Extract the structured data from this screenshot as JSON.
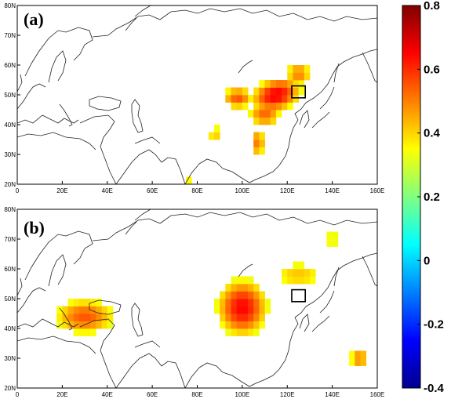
{
  "chart_data": {
    "type": "heatmap",
    "colorbar": {
      "min": -0.4,
      "max": 0.8,
      "ticks": [
        "0.8",
        "0.6",
        "0.4",
        "0.2",
        "0",
        "-0.2",
        "-0.4"
      ],
      "tick_values": [
        0.8,
        0.6,
        0.4,
        0.2,
        0,
        -0.2,
        -0.4
      ],
      "colormap": "jet"
    },
    "panels": [
      {
        "label": "(a)",
        "xlim": [
          0,
          160
        ],
        "ylim": [
          20,
          80
        ],
        "xticks": [
          "0",
          "20E",
          "40E",
          "60E",
          "80E",
          "100E",
          "120E",
          "140E",
          "160E"
        ],
        "yticks": [
          "20N",
          "30N",
          "40N",
          "50N",
          "60N",
          "70N",
          "80N"
        ],
        "region_box": {
          "lon": [
            122,
            128
          ],
          "lat": [
            49,
            53
          ]
        },
        "significant_blobs": [
          {
            "lon": 115,
            "lat": 50,
            "sx": 14,
            "sy": 7,
            "peak": 0.66,
            "rot": 0.2
          },
          {
            "lon": 98,
            "lat": 49,
            "sx": 9,
            "sy": 5,
            "peak": 0.55
          },
          {
            "lon": 125,
            "lat": 57,
            "sx": 8,
            "sy": 6,
            "peak": 0.5
          },
          {
            "lon": 110,
            "lat": 43,
            "sx": 10,
            "sy": 4,
            "peak": 0.55
          },
          {
            "lon": 107,
            "lat": 34,
            "sx": 4,
            "sy": 7,
            "peak": 0.52
          },
          {
            "lon": 88,
            "lat": 37,
            "sx": 6,
            "sy": 4,
            "peak": 0.42
          },
          {
            "lon": 70,
            "lat": 25,
            "sx": 3,
            "sy": 3,
            "peak": 0.36
          },
          {
            "lon": 76,
            "lat": 21,
            "sx": 4,
            "sy": 2,
            "peak": 0.36
          }
        ]
      },
      {
        "label": "(b)",
        "xlim": [
          0,
          160
        ],
        "ylim": [
          20,
          80
        ],
        "xticks": [
          "0",
          "20E",
          "40E",
          "60E",
          "80E",
          "100E",
          "120E",
          "140E",
          "160E"
        ],
        "yticks": [
          "20N",
          "30N",
          "40N",
          "50N",
          "60N",
          "70N",
          "80N"
        ],
        "region_box": {
          "lon": [
            122,
            128
          ],
          "lat": [
            49,
            53
          ]
        },
        "significant_blobs": [
          {
            "lon": 30,
            "lat": 44,
            "sx": 18,
            "sy": 8,
            "peak": 0.55
          },
          {
            "lon": 100,
            "lat": 47,
            "sx": 14,
            "sy": 12,
            "peak": 0.65
          },
          {
            "lon": 125,
            "lat": 58,
            "sx": 18,
            "sy": 7,
            "peak": 0.42
          },
          {
            "lon": 140,
            "lat": 70,
            "sx": 18,
            "sy": 7,
            "peak": 0.35
          },
          {
            "lon": 152,
            "lat": 30,
            "sx": 6,
            "sy": 5,
            "peak": 0.5
          }
        ]
      }
    ]
  }
}
